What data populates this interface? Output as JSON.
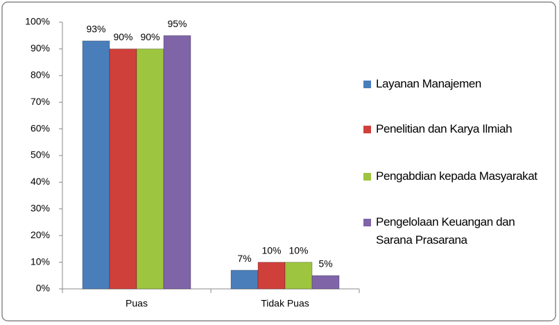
{
  "chart_data": {
    "type": "bar",
    "categories": [
      "Puas",
      "Tidak Puas"
    ],
    "series": [
      {
        "name": "Layanan Manajemen",
        "color": "#4a7ebb",
        "values": [
          93,
          7
        ],
        "value_labels": [
          "93%",
          "7%"
        ]
      },
      {
        "name": "Penelitian dan Karya Ilmiah",
        "color": "#d0403b",
        "values": [
          90,
          10
        ],
        "value_labels": [
          "90%",
          "10%"
        ]
      },
      {
        "name": "Pengabdian kepada Masyarakat",
        "color": "#9dc53f",
        "values": [
          90,
          10
        ],
        "value_labels": [
          "90%",
          "10%"
        ]
      },
      {
        "name": "Pengelolaan Keuangan dan Sarana Prasarana",
        "color": "#8064a8",
        "values": [
          95,
          5
        ],
        "value_labels": [
          "95%",
          "5%"
        ]
      }
    ],
    "ylim": [
      0,
      100
    ],
    "yticks": [
      {
        "value": 0,
        "label": "0%"
      },
      {
        "value": 10,
        "label": "10%"
      },
      {
        "value": 20,
        "label": "20%"
      },
      {
        "value": 30,
        "label": "30%"
      },
      {
        "value": 40,
        "label": "40%"
      },
      {
        "value": 50,
        "label": "50%"
      },
      {
        "value": 60,
        "label": "60%"
      },
      {
        "value": 70,
        "label": "70%"
      },
      {
        "value": 80,
        "label": "80%"
      },
      {
        "value": 90,
        "label": "90%"
      },
      {
        "value": 100,
        "label": "100%"
      }
    ],
    "grid": false,
    "legend": "right"
  }
}
